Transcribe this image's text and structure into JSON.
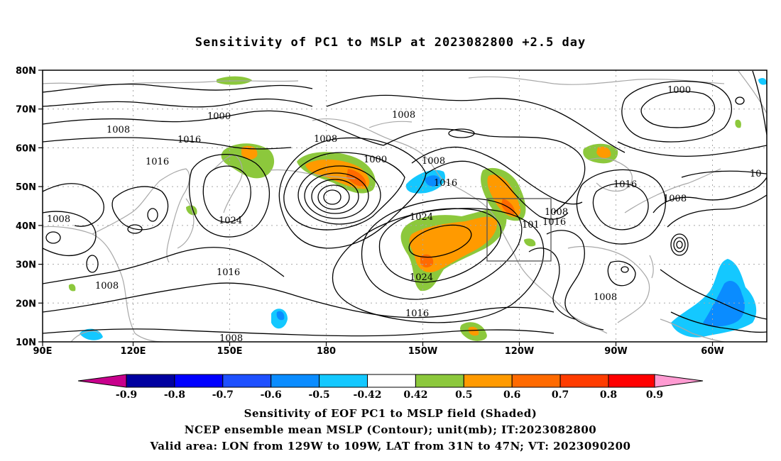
{
  "title": "Sensitivity of PC1 to MSLP at 2023082800 +2.5 day",
  "map": {
    "lat_ticks": [
      "80N",
      "70N",
      "60N",
      "50N",
      "40N",
      "30N",
      "20N",
      "10N"
    ],
    "lon_ticks": [
      "90E",
      "120E",
      "150E",
      "180",
      "150W",
      "120W",
      "90W",
      "60W"
    ],
    "valid_area_box": {
      "lon_from": "129W",
      "lon_to": "109W",
      "lat_from": "31N",
      "lat_to": "47N"
    },
    "contour_labels": [
      "1000",
      "1008",
      "1016",
      "1016",
      "1008",
      "1008",
      "1000",
      "1008",
      "1008",
      "1016",
      "1024",
      "1016",
      "1008",
      "1024",
      "1024",
      "1016",
      "1008",
      "101",
      "1016",
      "1008",
      "1016",
      "1008",
      "1008",
      "1000",
      "10",
      "1008",
      "1016"
    ],
    "colors": {
      "coastline": "#a8a8a8",
      "contour": "#000000",
      "green": "#8cc83c",
      "orange": "#ff9a00",
      "dark_orange": "#ff6a00",
      "light_blue": "#14c8ff",
      "blue": "#0a8cff"
    }
  },
  "colorbar": {
    "labels": [
      "-0.9",
      "-0.8",
      "-0.7",
      "-0.6",
      "-0.5",
      "-0.42",
      "0.42",
      "0.5",
      "0.6",
      "0.7",
      "0.8",
      "0.9"
    ],
    "colors": [
      "#c8008c",
      "#0000a0",
      "#0000ff",
      "#1e50ff",
      "#0a8cff",
      "#14c8ff",
      "#ffffff",
      "#8cc83c",
      "#ff9a00",
      "#ff6a00",
      "#ff3c00",
      "#ff0000",
      "#ff9bd2"
    ]
  },
  "captions": {
    "line1": "Sensitivity of EOF PC1 to MSLP field (Shaded)",
    "line2": "NCEP ensemble mean MSLP (Contour); unit(mb); IT:2023082800",
    "line3": "Valid area: LON from 129W to 109W, LAT from 31N to 47N; VT: 2023090200"
  }
}
